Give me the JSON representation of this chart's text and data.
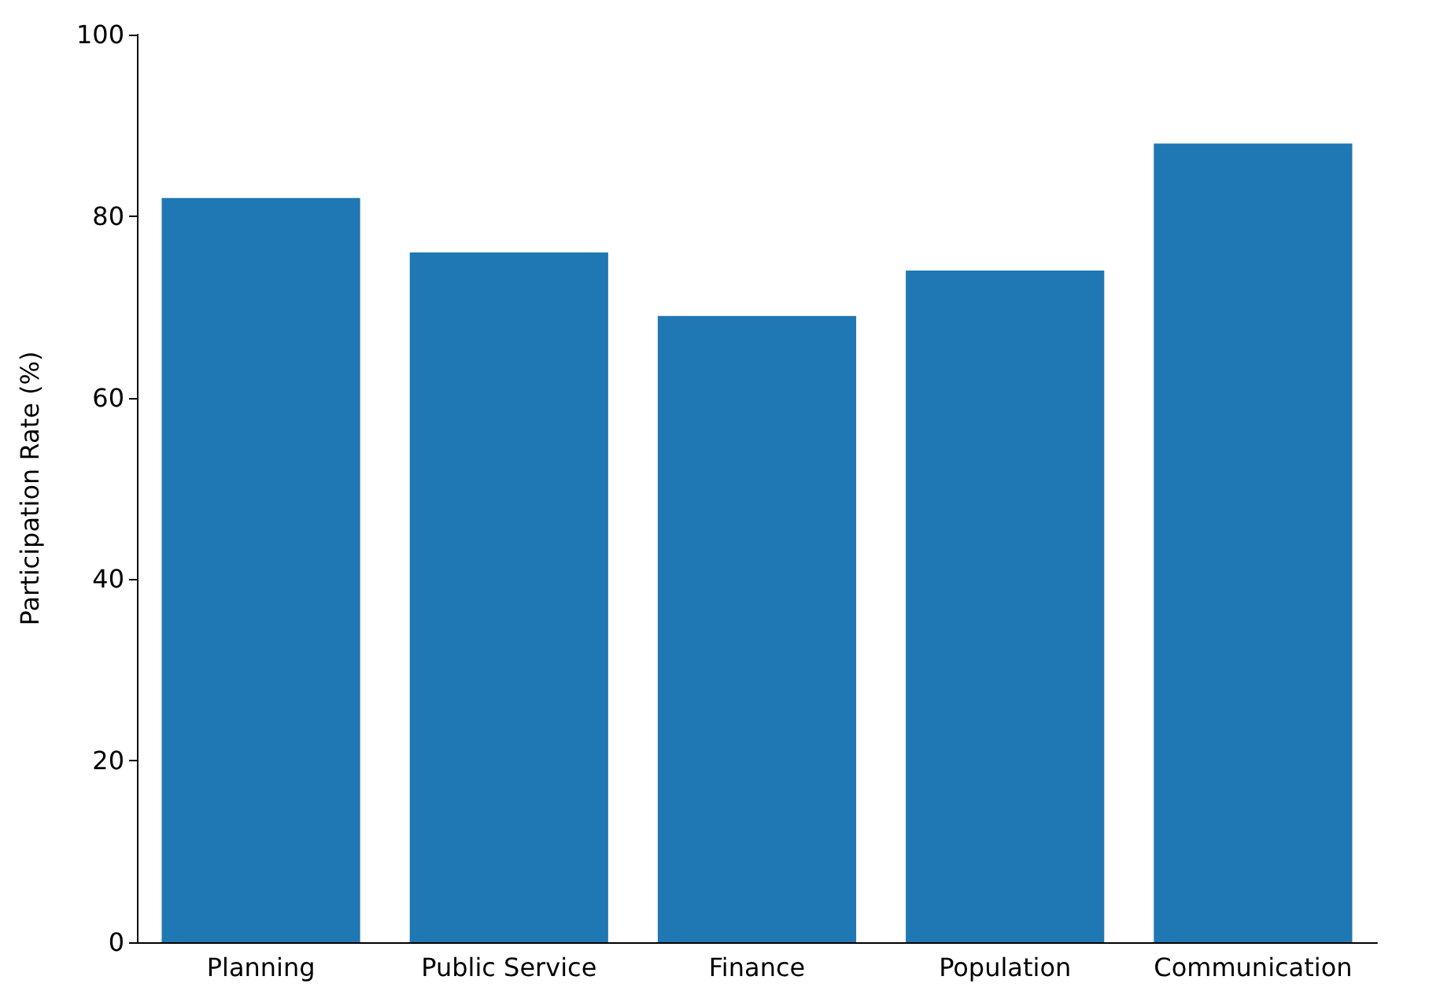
{
  "chart_data": {
    "type": "bar",
    "ylabel": "Participation Rate (%)",
    "categories": [
      "Planning",
      "Public Service",
      "Finance",
      "Population",
      "Communication"
    ],
    "values": [
      82,
      76,
      69,
      74,
      88
    ],
    "color": "#1f77b4",
    "ylim": [
      0,
      100
    ],
    "yticks": [
      0,
      20,
      40,
      60,
      80,
      100
    ],
    "grid": false
  }
}
